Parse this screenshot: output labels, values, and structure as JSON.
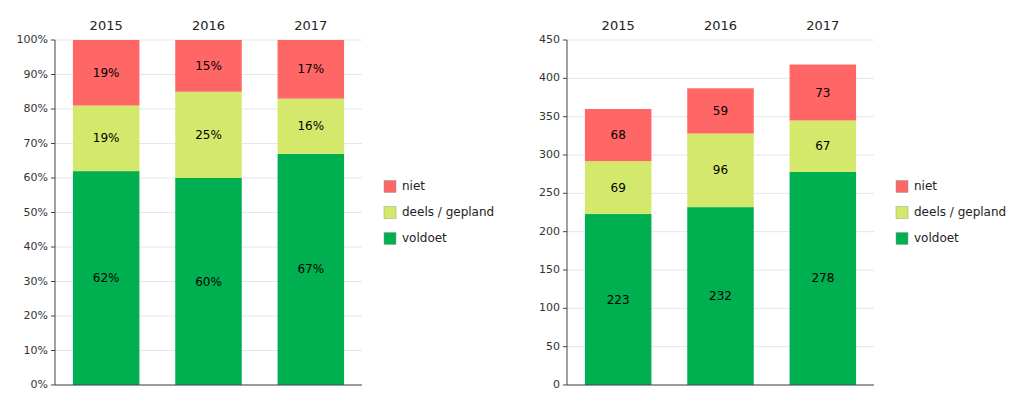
{
  "chart_data": [
    {
      "type": "bar",
      "stacked": true,
      "data_labels": true,
      "legend": "right",
      "categories": [
        "2015",
        "2016",
        "2017"
      ],
      "series": [
        {
          "name": "voldoet",
          "color": "#00b050",
          "values": [
            62,
            60,
            67
          ],
          "value_labels": [
            "62%",
            "60%",
            "67%"
          ]
        },
        {
          "name": "deels / gepland",
          "color": "#d4e96b",
          "values": [
            19,
            25,
            16
          ],
          "value_labels": [
            "19%",
            "25%",
            "16%"
          ]
        },
        {
          "name": "niet",
          "color": "#ff6666",
          "values": [
            19,
            15,
            17
          ],
          "value_labels": [
            "19%",
            "15%",
            "17%"
          ]
        }
      ],
      "ylim": [
        0,
        100
      ],
      "yticks": [
        {
          "value": 0,
          "label": "0%"
        },
        {
          "value": 10,
          "label": "10%"
        },
        {
          "value": 20,
          "label": "20%"
        },
        {
          "value": 30,
          "label": "30%"
        },
        {
          "value": 40,
          "label": "40%"
        },
        {
          "value": 50,
          "label": "50%"
        },
        {
          "value": 60,
          "label": "60%"
        },
        {
          "value": 70,
          "label": "70%"
        },
        {
          "value": 80,
          "label": "80%"
        },
        {
          "value": 90,
          "label": "90%"
        },
        {
          "value": 100,
          "label": "100%"
        }
      ]
    },
    {
      "type": "bar",
      "stacked": true,
      "data_labels": true,
      "legend": "right",
      "categories": [
        "2015",
        "2016",
        "2017"
      ],
      "series": [
        {
          "name": "voldoet",
          "color": "#00b050",
          "values": [
            223,
            232,
            278
          ]
        },
        {
          "name": "deels / gepland",
          "color": "#d4e96b",
          "values": [
            69,
            96,
            67
          ]
        },
        {
          "name": "niet",
          "color": "#ff6666",
          "values": [
            68,
            59,
            73
          ]
        }
      ],
      "ylim": [
        0,
        450
      ],
      "yticks": [
        0,
        50,
        100,
        150,
        200,
        250,
        300,
        350,
        400,
        450
      ]
    }
  ]
}
